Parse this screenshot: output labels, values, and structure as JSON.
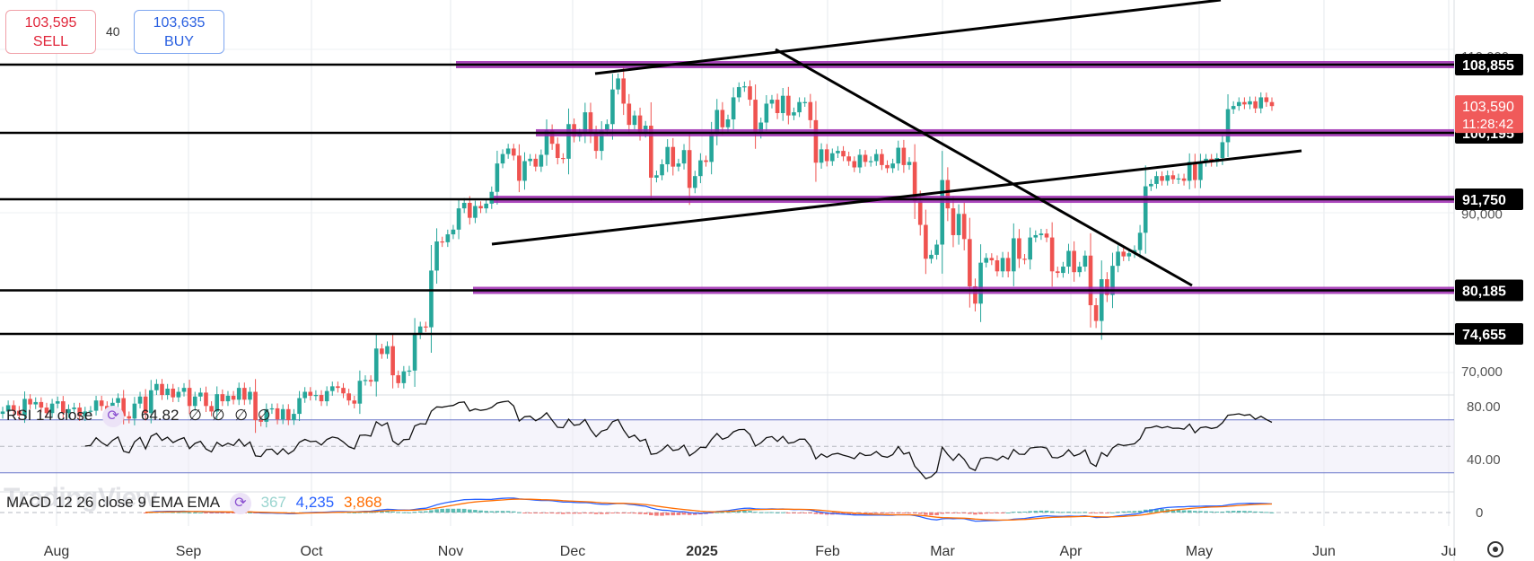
{
  "quote": {
    "sell_price": "103,595",
    "sell_label": "SELL",
    "buy_price": "103,635",
    "buy_label": "BUY",
    "spread": "40"
  },
  "watermark": "TradingView",
  "rsi": {
    "label": "RSI 14 close",
    "value": "64.82",
    "extras": [
      "∅",
      "∅",
      "∅",
      "∅"
    ],
    "scale_ticks": [
      "80.00",
      "40.00"
    ],
    "upper_band": 70,
    "lower_band": 30,
    "middle": 50
  },
  "macd": {
    "label": "MACD 12 26 close 9 EMA EMA",
    "histogram_value": "367",
    "macd_value": "4,235",
    "signal_value": "3,868",
    "scale_tick": "0"
  },
  "colors": {
    "up": "#26a69a",
    "down": "#ef5350",
    "level_line": "#000000",
    "zone_band": "#9c27b0",
    "price_tag": "#f05a5a",
    "macd_line": "#2962ff",
    "signal_line": "#ff6d00"
  },
  "chart_data": {
    "type": "candlestick",
    "price_axis_ticks": [
      "110,000",
      "90,000",
      "70,000"
    ],
    "time_axis_labels": [
      "Aug",
      "Sep",
      "Oct",
      "Nov",
      "Dec",
      "2025",
      "Feb",
      "Mar",
      "Apr",
      "May",
      "Jun",
      "Ju"
    ],
    "horizontal_levels": [
      "108,855",
      "100,195",
      "91,750",
      "80,185",
      "74,655"
    ],
    "current_price": "103,590",
    "countdown": "11:28:42",
    "closes": [
      64800,
      65600,
      64900,
      64300,
      66400,
      65700,
      66000,
      65300,
      64600,
      65800,
      66100,
      64600,
      65100,
      65300,
      64200,
      64800,
      64900,
      66200,
      65500,
      65000,
      65900,
      66500,
      64200,
      63900,
      65800,
      66700,
      64600,
      67500,
      68300,
      66900,
      67700,
      66600,
      67300,
      67800,
      65500,
      66700,
      67200,
      65500,
      64800,
      67000,
      66100,
      66800,
      66300,
      67800,
      66300,
      67300,
      63700,
      63500,
      65100,
      65200,
      63800,
      65100,
      63700,
      64500,
      66500,
      67300,
      66800,
      66900,
      66100,
      67400,
      68000,
      67800,
      67100,
      66200,
      65800,
      68700,
      68800,
      68600,
      72800,
      72100,
      73100,
      69400,
      68400,
      69900,
      70000,
      74600,
      75600,
      75500,
      82700,
      86400,
      86300,
      87300,
      87900,
      90600,
      91300,
      89400,
      90900,
      90600,
      91200,
      92700,
      96300,
      97500,
      98200,
      97300,
      94100,
      96600,
      96900,
      95900,
      97400,
      100500,
      98800,
      97000,
      96900,
      101300,
      99700,
      100100,
      102800,
      100100,
      97900,
      100500,
      101300,
      105700,
      107100,
      103900,
      101200,
      102400,
      100200,
      101100,
      94500,
      94800,
      96200,
      98400,
      95900,
      96300,
      98000,
      93200,
      94700,
      96700,
      96500,
      100000,
      103100,
      100900,
      101900,
      104700,
      106000,
      106100,
      104400,
      100100,
      101500,
      103900,
      104400,
      102700,
      104900,
      102400,
      102800,
      104100,
      104100,
      101800,
      96400,
      98100,
      96600,
      97600,
      97900,
      97200,
      96600,
      95800,
      97400,
      96500,
      96600,
      97500,
      96100,
      95700,
      96300,
      98300,
      96100,
      96500,
      91500,
      88500,
      84200,
      84700,
      86000,
      94200,
      90600,
      87200,
      89900,
      86700,
      80700,
      78500,
      83700,
      84300,
      84000,
      82600,
      84300,
      82600,
      86800,
      84200,
      84100,
      86900,
      87200,
      87400,
      86900,
      82600,
      82400,
      83200,
      85200,
      82500,
      83200,
      84600,
      78300,
      76300,
      81600,
      79600,
      83300,
      85100,
      84500,
      84900,
      85300,
      87500,
      93400,
      93700,
      94700,
      94100,
      94800,
      94300,
      94400,
      94100,
      96500,
      94200,
      96500,
      96900,
      96500,
      97000,
      99000,
      103200,
      103600,
      104100,
      103800,
      104200,
      103300,
      104700,
      104100,
      103590
    ]
  }
}
